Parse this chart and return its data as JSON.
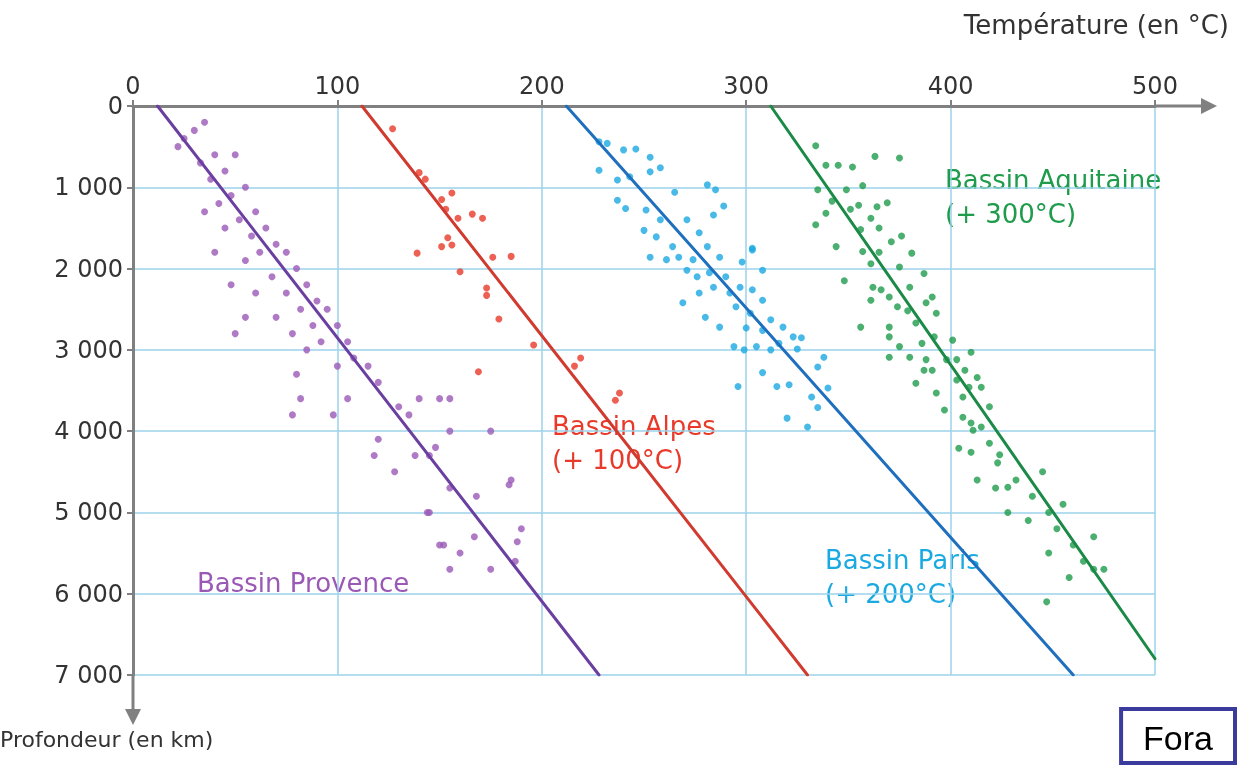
{
  "chart_data": {
    "type": "scatter",
    "xlabel": "Température (en °C)",
    "ylabel": "Profondeur (en km)",
    "xlim": [
      0,
      500
    ],
    "xticks": [
      0,
      100,
      200,
      300,
      400,
      500
    ],
    "ylim": [
      7000,
      0
    ],
    "yticks": [
      0,
      {
        "value": 1000,
        "label": "1 000"
      },
      {
        "value": 2000,
        "label": "2 000"
      },
      {
        "value": 3000,
        "label": "3 000"
      },
      {
        "value": 4000,
        "label": "4 000"
      },
      {
        "value": 5000,
        "label": "5 000"
      },
      {
        "value": 6000,
        "label": "6 000"
      },
      {
        "value": 7000,
        "label": "7 000"
      }
    ],
    "grid": true,
    "marker": "circle",
    "series": [
      {
        "name": "Bassin Provence",
        "color": "#9b59b6",
        "x": [
          25,
          30,
          35,
          22,
          40,
          33,
          45,
          38,
          50,
          55,
          48,
          42,
          60,
          35,
          52,
          65,
          45,
          58,
          70,
          40,
          62,
          75,
          55,
          80,
          68,
          85,
          48,
          60,
          75,
          90,
          82,
          95,
          70,
          88,
          100,
          50,
          78,
          92,
          105,
          55,
          85,
          108,
          80,
          115,
          100,
          120,
          82,
          78,
          98,
          105,
          130,
          135,
          140,
          150,
          155,
          120,
          118,
          138,
          148,
          145,
          175,
          155,
          128,
          155,
          168,
          145,
          185,
          190,
          150,
          155,
          160,
          175,
          187,
          167,
          184,
          188,
          152,
          144
        ],
        "values": [
          400,
          300,
          200,
          500,
          600,
          700,
          800,
          900,
          600,
          1000,
          1100,
          1200,
          1300,
          1300,
          1400,
          1500,
          1500,
          1600,
          1700,
          1800,
          1800,
          1800,
          1900,
          2000,
          2100,
          2200,
          2200,
          2300,
          2300,
          2400,
          2500,
          2500,
          2600,
          2700,
          2700,
          2800,
          2800,
          2900,
          2900,
          2600,
          3000,
          3100,
          3300,
          3200,
          3200,
          3400,
          3600,
          3800,
          3800,
          3600,
          3700,
          3800,
          3600,
          3600,
          3600,
          4100,
          4300,
          4300,
          4200,
          4300,
          4000,
          4000,
          4500,
          4700,
          4800,
          5000,
          4600,
          5200,
          5400,
          5700,
          5500,
          5700,
          5600,
          5300,
          4660,
          5360,
          5400,
          5000
        ]
      },
      {
        "name": "Bassin Alpes\n(+ 100°C)",
        "color": "#e8392a",
        "x": [
          127,
          140,
          143,
          156,
          151,
          153,
          159,
          166,
          171,
          154,
          151,
          156,
          139,
          176,
          185,
          160,
          173,
          173,
          179,
          196,
          219,
          216,
          169,
          238,
          236
        ],
        "values": [
          280,
          820,
          900,
          1070,
          1150,
          1270,
          1380,
          1330,
          1380,
          1620,
          1730,
          1710,
          1810,
          1860,
          1850,
          2040,
          2240,
          2330,
          2620,
          2940,
          3100,
          3200,
          3270,
          3530,
          3620
        ]
      },
      {
        "name": "Bassin Paris\n(+ 200°C)",
        "color": "#1ba9e1",
        "x": [
          228,
          232,
          240,
          228,
          246,
          253,
          258,
          253,
          237,
          243,
          281,
          285,
          237,
          241,
          251,
          265,
          289,
          284,
          250,
          258,
          271,
          277,
          256,
          264,
          303,
          253,
          261,
          267,
          274,
          281,
          298,
          287,
          271,
          276,
          282,
          290,
          308,
          269,
          277,
          284,
          292,
          297,
          303,
          308,
          280,
          287,
          295,
          302,
          312,
          318,
          300,
          308,
          294,
          299,
          305,
          312,
          316,
          323,
          327,
          325,
          338,
          335,
          308,
          296,
          315,
          321,
          332,
          340,
          335,
          320,
          330,
          303
        ],
        "values": [
          440,
          460,
          540,
          790,
          530,
          630,
          760,
          810,
          910,
          870,
          970,
          1030,
          1160,
          1260,
          1280,
          1060,
          1230,
          1340,
          1530,
          1400,
          1400,
          1560,
          1610,
          1730,
          1750,
          1860,
          1890,
          1860,
          1890,
          1730,
          1920,
          1860,
          2020,
          2100,
          2050,
          2100,
          2020,
          2420,
          2300,
          2230,
          2300,
          2230,
          2260,
          2390,
          2600,
          2720,
          2470,
          2550,
          2630,
          2720,
          2730,
          2760,
          2960,
          3000,
          2960,
          3000,
          2920,
          2840,
          2850,
          2990,
          3090,
          3210,
          3280,
          3450,
          3450,
          3430,
          3580,
          3470,
          3710,
          3840,
          3950,
          1770
        ]
      },
      {
        "name": "Bassin Aquitaine\n(+ 300°C)",
        "color": "#1e9b4b",
        "x": [
          334,
          339,
          345,
          352,
          363,
          375,
          335,
          349,
          357,
          339,
          334,
          342,
          351,
          355,
          364,
          369,
          361,
          365,
          344,
          356,
          357,
          371,
          376,
          381,
          348,
          361,
          365,
          375,
          387,
          362,
          361,
          366,
          370,
          374,
          380,
          379,
          383,
          388,
          391,
          393,
          356,
          370,
          370,
          370,
          375,
          380,
          386,
          388,
          392,
          401,
          383,
          387,
          393,
          391,
          398,
          403,
          410,
          397,
          403,
          407,
          406,
          409,
          413,
          415,
          406,
          410,
          411,
          419,
          415,
          404,
          410,
          419,
          423,
          424,
          413,
          422,
          428,
          432,
          440,
          445,
          448,
          452,
          455,
          460,
          448,
          465,
          470,
          458,
          475,
          447,
          438,
          428,
          470
        ],
        "values": [
          490,
          730,
          730,
          750,
          620,
          640,
          1030,
          1030,
          980,
          1320,
          1460,
          1170,
          1270,
          1220,
          1240,
          1190,
          1380,
          1500,
          1730,
          1520,
          1790,
          1670,
          1600,
          1810,
          2150,
          1940,
          1800,
          1980,
          2060,
          2230,
          2390,
          2260,
          2350,
          2470,
          2230,
          2520,
          2670,
          2420,
          2350,
          2550,
          2720,
          2720,
          2840,
          3090,
          2960,
          3090,
          2920,
          3120,
          2840,
          2880,
          3410,
          3250,
          3530,
          3250,
          3120,
          3120,
          3030,
          3740,
          3370,
          3250,
          3580,
          3460,
          3340,
          3460,
          3830,
          3900,
          3990,
          3700,
          3950,
          4210,
          4260,
          4150,
          4390,
          4290,
          4600,
          4700,
          4690,
          4600,
          4800,
          4500,
          5000,
          5200,
          4900,
          5400,
          5500,
          5600,
          5700,
          5800,
          5700,
          6100,
          5100,
          5000,
          5300
        ]
      },
      {
        "type": "line",
        "marker": "none",
        "color": "#6b3fa0",
        "x": [
          12,
          228
        ],
        "values": [
          0,
          7000
        ]
      },
      {
        "type": "line",
        "marker": "none",
        "color": "#d13b2f",
        "x": [
          112,
          330
        ],
        "values": [
          0,
          7000
        ]
      },
      {
        "type": "line",
        "marker": "none",
        "color": "#1f6fbf",
        "x": [
          212,
          460
        ],
        "values": [
          0,
          7000
        ]
      },
      {
        "type": "line",
        "marker": "none",
        "color": "#1b8a46",
        "x": [
          312,
          500
        ],
        "values": [
          0,
          6800
        ]
      }
    ],
    "annotations": [
      "Fora"
    ]
  }
}
